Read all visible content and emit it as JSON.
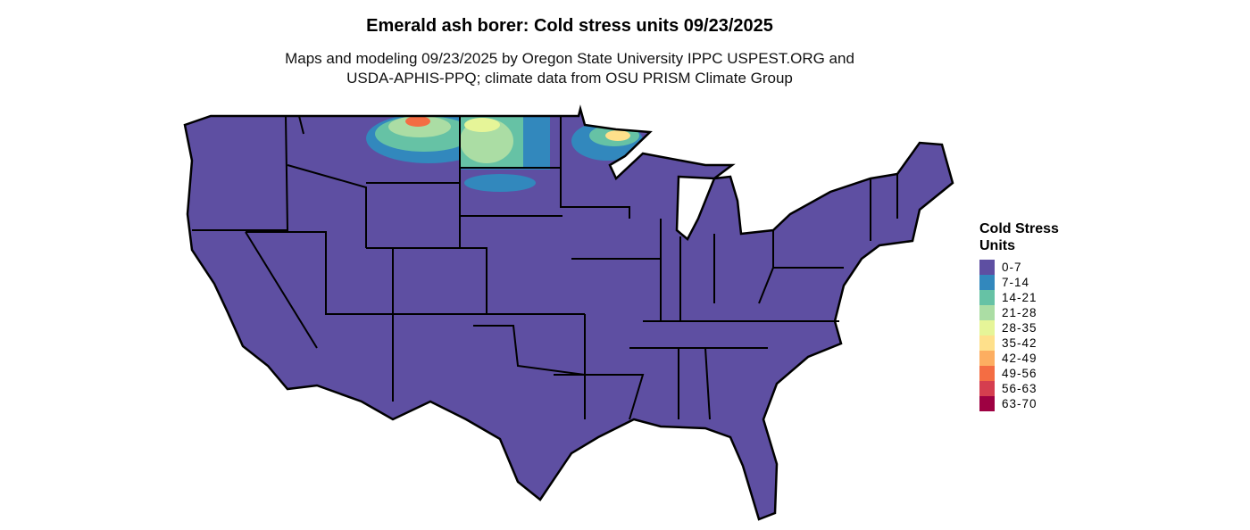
{
  "title": "Emerald ash borer: Cold stress units 09/23/2025",
  "subtitle_line1": "Maps and modeling 09/23/2025 by Oregon State University IPPC USPEST.ORG and",
  "subtitle_line2": "USDA-APHIS-PPQ; climate data from OSU PRISM Climate Group",
  "legend": {
    "title_line1": "Cold Stress",
    "title_line2": "Units",
    "items": [
      {
        "label": "0-7",
        "color": "#5E4FA2"
      },
      {
        "label": "7-14",
        "color": "#3288BD"
      },
      {
        "label": "14-21",
        "color": "#66C2A5"
      },
      {
        "label": "21-28",
        "color": "#ABDDA4"
      },
      {
        "label": "28-35",
        "color": "#E6F598"
      },
      {
        "label": "35-42",
        "color": "#FEE08B"
      },
      {
        "label": "42-49",
        "color": "#FDAE61"
      },
      {
        "label": "49-56",
        "color": "#F46D43"
      },
      {
        "label": "56-63",
        "color": "#D53E4F"
      },
      {
        "label": "63-70",
        "color": "#9E0142"
      }
    ]
  }
}
